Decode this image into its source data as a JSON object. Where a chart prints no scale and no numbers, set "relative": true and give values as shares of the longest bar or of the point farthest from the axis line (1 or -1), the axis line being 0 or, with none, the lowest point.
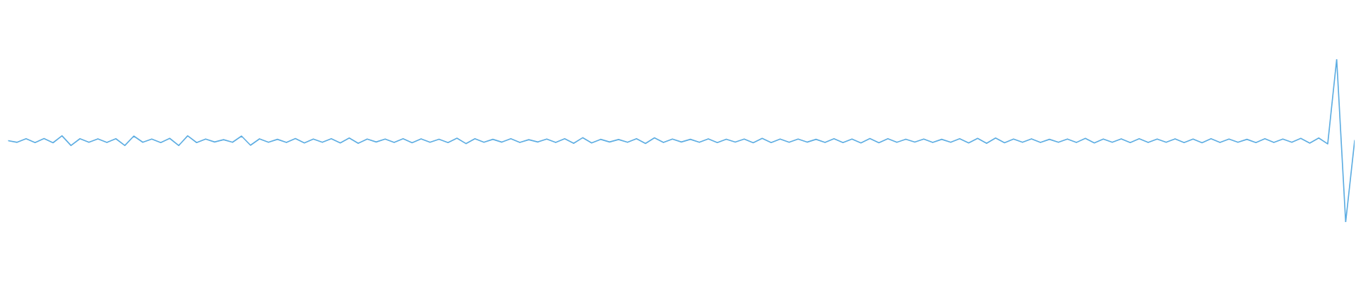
{
  "chart_data": {
    "type": "line",
    "relative": true,
    "color": "#5dade2",
    "line_style": "solid",
    "marker": "none",
    "legend": false,
    "tick_labels": false,
    "categories": [
      null,
      null,
      null,
      null,
      null,
      null,
      null,
      null,
      null,
      null,
      null,
      null,
      null,
      null,
      null,
      null,
      null,
      null,
      null,
      null,
      null,
      null,
      null,
      null,
      null,
      null,
      null,
      null,
      null,
      null,
      null,
      null,
      null,
      null,
      null,
      null,
      null,
      null,
      null,
      null,
      null,
      null,
      null,
      null,
      null,
      null,
      null,
      null,
      null,
      null,
      null,
      null,
      null,
      null,
      null,
      null,
      null,
      null,
      null,
      null,
      null,
      null,
      null,
      null,
      null,
      null,
      null,
      null,
      null,
      null,
      null,
      null,
      null,
      null,
      null,
      null,
      null,
      null,
      null,
      null,
      null,
      null,
      null,
      null,
      null,
      null,
      null,
      null,
      null,
      null,
      null,
      null,
      null,
      null,
      null,
      null,
      null,
      null,
      null,
      null,
      null,
      null,
      null,
      null,
      null,
      null,
      null,
      null,
      null,
      null,
      null,
      null,
      null,
      null,
      null,
      null,
      null,
      null,
      null,
      null,
      null,
      null,
      null,
      null,
      null,
      null,
      null,
      null,
      null,
      null,
      null,
      null,
      null,
      null,
      null,
      null,
      null,
      null,
      null,
      null,
      null,
      null,
      null,
      null,
      null,
      null,
      null,
      null,
      null,
      null,
      null
    ],
    "values": [
      0.5,
      0.49,
      0.512,
      0.488,
      0.513,
      0.487,
      0.53,
      0.47,
      0.512,
      0.49,
      0.511,
      0.489,
      0.512,
      0.47,
      0.528,
      0.49,
      0.51,
      0.488,
      0.514,
      0.47,
      0.53,
      0.488,
      0.51,
      0.492,
      0.506,
      0.49,
      0.528,
      0.472,
      0.511,
      0.49,
      0.508,
      0.489,
      0.513,
      0.486,
      0.51,
      0.49,
      0.512,
      0.486,
      0.516,
      0.484,
      0.51,
      0.492,
      0.51,
      0.489,
      0.512,
      0.487,
      0.511,
      0.49,
      0.509,
      0.488,
      0.515,
      0.482,
      0.512,
      0.49,
      0.508,
      0.491,
      0.512,
      0.489,
      0.506,
      0.492,
      0.51,
      0.489,
      0.512,
      0.484,
      0.518,
      0.486,
      0.508,
      0.492,
      0.507,
      0.49,
      0.512,
      0.483,
      0.517,
      0.489,
      0.51,
      0.492,
      0.508,
      0.49,
      0.511,
      0.488,
      0.509,
      0.491,
      0.51,
      0.487,
      0.514,
      0.488,
      0.51,
      0.49,
      0.51,
      0.491,
      0.508,
      0.489,
      0.512,
      0.488,
      0.51,
      0.486,
      0.513,
      0.487,
      0.512,
      0.49,
      0.509,
      0.491,
      0.51,
      0.489,
      0.508,
      0.49,
      0.512,
      0.486,
      0.514,
      0.484,
      0.516,
      0.487,
      0.51,
      0.49,
      0.511,
      0.489,
      0.508,
      0.49,
      0.51,
      0.489,
      0.514,
      0.486,
      0.51,
      0.49,
      0.511,
      0.488,
      0.512,
      0.489,
      0.51,
      0.49,
      0.511,
      0.488,
      0.51,
      0.487,
      0.512,
      0.489,
      0.51,
      0.49,
      0.508,
      0.488,
      0.512,
      0.489,
      0.51,
      0.49,
      0.514,
      0.485,
      0.516,
      0.48,
      1.0,
      0.0,
      0.5
    ]
  }
}
